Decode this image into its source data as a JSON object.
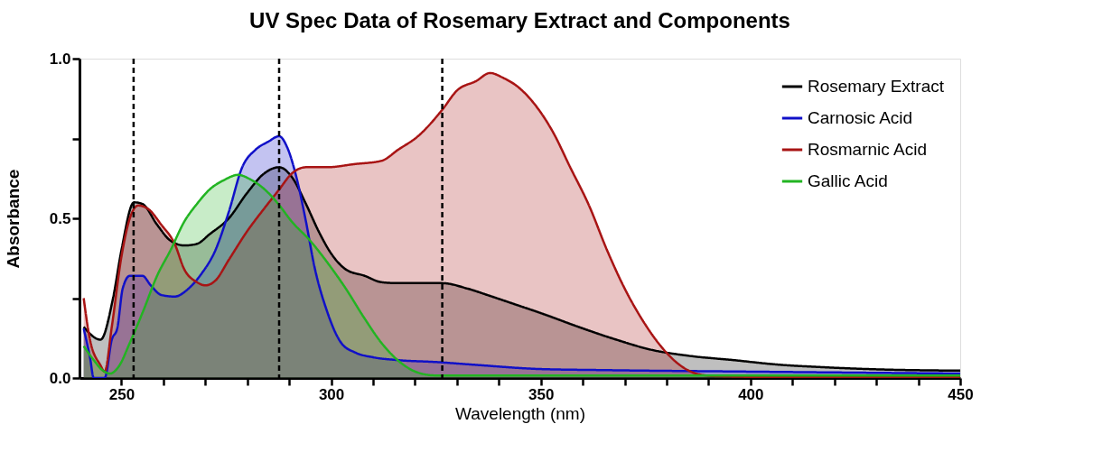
{
  "chart_data": {
    "type": "area",
    "title": "UV Spec Data of Rosemary Extract and Components",
    "xlabel": "Wavelength (nm)",
    "ylabel": "Absorbance",
    "xlim": [
      240,
      450
    ],
    "ylim": [
      0,
      1.0
    ],
    "xticks": [
      250,
      {
        "value": 260,
        "label": null
      },
      {
        "value": 270,
        "label": null
      },
      {
        "value": 280,
        "label": null
      },
      {
        "value": 290,
        "label": null
      },
      300,
      {
        "value": 310,
        "label": null
      },
      {
        "value": 320,
        "label": null
      },
      {
        "value": 330,
        "label": null
      },
      {
        "value": 340,
        "label": null
      },
      350,
      {
        "value": 360,
        "label": null
      },
      {
        "value": 370,
        "label": null
      },
      {
        "value": 380,
        "label": null
      },
      {
        "value": 390,
        "label": null
      },
      400,
      {
        "value": 410,
        "label": null
      },
      {
        "value": 420,
        "label": null
      },
      {
        "value": 430,
        "label": null
      },
      {
        "value": 440,
        "label": null
      },
      450
    ],
    "yticks": [
      {
        "value": 0,
        "label": "0.0"
      },
      {
        "value": 0.25,
        "label": null
      },
      {
        "value": 0.5,
        "label": "0.5"
      },
      {
        "value": 0.75,
        "label": null
      },
      {
        "value": 1.0,
        "label": "1.0"
      }
    ],
    "legend": "top right",
    "grid": false,
    "line_style": "solid",
    "ref_lines": [
      {
        "axis": "x",
        "value": 252.9,
        "line_style": "dashed",
        "color": "#000000"
      },
      {
        "axis": "x",
        "value": 287.6,
        "line_style": "dashed",
        "color": "#000000"
      },
      {
        "axis": "x",
        "value": 326.5,
        "line_style": "dashed",
        "color": "#000000"
      }
    ],
    "series": [
      {
        "name": "Rosemary Extract",
        "color": "#000000",
        "x": [
          241,
          245,
          248,
          250,
          253,
          255,
          258.5,
          261.7,
          265,
          268,
          271,
          275.6,
          280,
          284,
          287.6,
          290.6,
          294,
          297,
          300,
          303.5,
          308,
          312,
          316,
          320.7,
          326.5,
          332.5,
          337.9,
          344,
          350.7,
          359,
          368,
          376.5,
          385,
          396,
          406.5,
          417,
          428,
          450
        ],
        "values": [
          0.16,
          0.12,
          0.25,
          0.4,
          0.55,
          0.545,
          0.48,
          0.43,
          0.415,
          0.42,
          0.45,
          0.5,
          0.58,
          0.64,
          0.66,
          0.63,
          0.545,
          0.46,
          0.39,
          0.34,
          0.32,
          0.3,
          0.297,
          0.297,
          0.297,
          0.28,
          0.257,
          0.23,
          0.2,
          0.16,
          0.12,
          0.088,
          0.07,
          0.056,
          0.042,
          0.034,
          0.028,
          0.023
        ]
      },
      {
        "name": "Carnosic Acid",
        "color": "#1010c8",
        "x": [
          241,
          242.5,
          243.4,
          246,
          247.7,
          249,
          250.3,
          252,
          255,
          257,
          259.5,
          262.7,
          266,
          269,
          272.4,
          275.6,
          278.8,
          282,
          285,
          287.6,
          289.6,
          291.7,
          294,
          296,
          299,
          302.4,
          305.7,
          310,
          316,
          325,
          333.6,
          350,
          363.6,
          400,
          450
        ],
        "values": [
          0.155,
          0.065,
          0.0,
          0.0,
          0.12,
          0.155,
          0.28,
          0.32,
          0.32,
          0.29,
          0.26,
          0.255,
          0.28,
          0.325,
          0.4,
          0.52,
          0.66,
          0.715,
          0.74,
          0.757,
          0.72,
          0.63,
          0.49,
          0.35,
          0.21,
          0.11,
          0.08,
          0.065,
          0.056,
          0.05,
          0.042,
          0.028,
          0.025,
          0.02,
          0.014
        ]
      },
      {
        "name": "Rosmarnic Acid",
        "color": "#a81414",
        "x": [
          241,
          242.5,
          245,
          246,
          247.7,
          250,
          252,
          254,
          256.3,
          259.5,
          262.7,
          265,
          268,
          270,
          272.4,
          275.6,
          280,
          284,
          287.6,
          290.6,
          294,
          299,
          305.7,
          312,
          316,
          320.7,
          326.5,
          330,
          334.6,
          337.9,
          341,
          344.7,
          348.6,
          352.9,
          357,
          361.5,
          365.8,
          370,
          374.3,
          378.6,
          383,
          387,
          391.5,
          406.5,
          450
        ],
        "values": [
          0.25,
          0.12,
          0.04,
          0.02,
          0.16,
          0.38,
          0.5,
          0.54,
          0.53,
          0.48,
          0.42,
          0.34,
          0.3,
          0.29,
          0.305,
          0.37,
          0.46,
          0.53,
          0.59,
          0.64,
          0.66,
          0.66,
          0.67,
          0.68,
          0.715,
          0.757,
          0.84,
          0.9,
          0.93,
          0.955,
          0.94,
          0.91,
          0.856,
          0.77,
          0.66,
          0.54,
          0.4,
          0.28,
          0.18,
          0.1,
          0.042,
          0.014,
          0.006,
          0.003,
          0.003
        ]
      },
      {
        "name": "Gallic Acid",
        "color": "#22b422",
        "x": [
          241,
          243.4,
          245.6,
          247.3,
          249.4,
          252,
          255.2,
          258.5,
          261.7,
          265,
          268,
          271,
          274.5,
          277.8,
          281,
          284.2,
          287.4,
          290.6,
          295,
          299.2,
          303.5,
          307.8,
          312,
          316.4,
          320.7,
          325,
          342,
          450
        ],
        "values": [
          0.1,
          0.056,
          0.023,
          0.014,
          0.037,
          0.11,
          0.21,
          0.32,
          0.4,
          0.49,
          0.545,
          0.59,
          0.62,
          0.636,
          0.62,
          0.59,
          0.545,
          0.49,
          0.43,
          0.36,
          0.28,
          0.19,
          0.11,
          0.05,
          0.017,
          0.008,
          0.008,
          0.008
        ]
      }
    ]
  }
}
